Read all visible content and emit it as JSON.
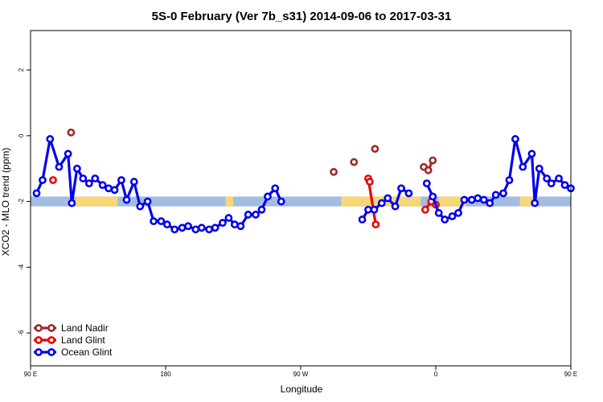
{
  "chart_data": {
    "type": "line",
    "title": "5S-0 February (Ver 7b_s31)   2014-09-06 to 2017-03-31",
    "xlabel": "Longitude",
    "ylabel": "XCO2 - MLO trend (ppm)",
    "xlim": [
      90,
      450
    ],
    "ylim": [
      -7,
      3.2
    ],
    "x_ticks": [
      {
        "value": 90,
        "label": "90 E"
      },
      {
        "value": 180,
        "label": "180"
      },
      {
        "value": 270,
        "label": "90 W"
      },
      {
        "value": 360,
        "label": "0"
      },
      {
        "value": 450,
        "label": "90 E"
      },
      {
        "value": 540,
        "label": "180"
      }
    ],
    "y_ticks": [
      {
        "value": 2,
        "label": "2"
      },
      {
        "value": 0,
        "label": "0"
      },
      {
        "value": -2,
        "label": "-2"
      },
      {
        "value": -4,
        "label": "-4"
      },
      {
        "value": -6,
        "label": "-6"
      }
    ],
    "band": {
      "ymin": -2.15,
      "ymax": -1.85,
      "ocean_color": "#a3bde0",
      "land_color": "#f5d77a"
    },
    "land_segments": [
      [
        120,
        148
      ],
      [
        220,
        225
      ],
      [
        297,
        350
      ],
      [
        362,
        380
      ],
      [
        416,
        425
      ],
      [
        510,
        520
      ],
      [
        528,
        538
      ]
    ],
    "legend_position": "bottom-left",
    "series": [
      {
        "name": "Land Nadir",
        "color": "#9e2a2b",
        "style": "line+points",
        "segments": [
          [
            [
              319.5,
              -0.4
            ]
          ],
          [
            [
              305.5,
              -0.8
            ]
          ],
          [
            [
              292,
              -1.1
            ]
          ],
          [
            [
              117,
              0.1
            ]
          ],
          [
            [
              352,
              -0.95
            ],
            [
              355,
              -1.05
            ],
            [
              358,
              -0.75
            ]
          ],
          [
            [
              477,
              0.1
            ]
          ]
        ]
      },
      {
        "name": "Land Glint",
        "color": "#ee0000",
        "style": "line+points",
        "segments": [
          [
            [
              105,
              -1.35
            ]
          ],
          [
            [
              315,
              -1.3
            ],
            [
              320,
              -2.7
            ]
          ],
          [
            [
              316,
              -1.4
            ]
          ],
          [
            [
              353,
              -2.25
            ],
            [
              357,
              -2.0
            ]
          ],
          [
            [
              360,
              -2.1
            ]
          ],
          [
            [
              465,
              -1.35
            ]
          ]
        ]
      },
      {
        "name": "Ocean Glint",
        "color": "#0000ee",
        "style": "line+points",
        "segments": [
          [
            [
              94,
              -1.75
            ],
            [
              98,
              -1.35
            ],
            [
              103,
              -0.1
            ],
            [
              109,
              -0.95
            ],
            [
              115,
              -0.55
            ],
            [
              117.5,
              -2.05
            ],
            [
              121,
              -1.0
            ],
            [
              125,
              -1.3
            ],
            [
              129,
              -1.45
            ],
            [
              133,
              -1.3
            ],
            [
              138,
              -1.5
            ],
            [
              142,
              -1.6
            ],
            [
              146,
              -1.65
            ],
            [
              150.5,
              -1.35
            ],
            [
              154,
              -1.95
            ],
            [
              159,
              -1.4
            ],
            [
              163,
              -2.15
            ],
            [
              168,
              -2.0
            ],
            [
              172,
              -2.6
            ],
            [
              177,
              -2.6
            ],
            [
              181,
              -2.7
            ],
            [
              186,
              -2.85
            ],
            [
              191,
              -2.8
            ],
            [
              195,
              -2.75
            ],
            [
              200,
              -2.85
            ],
            [
              204,
              -2.8
            ],
            [
              209,
              -2.85
            ],
            [
              213,
              -2.8
            ],
            [
              218,
              -2.65
            ],
            [
              222,
              -2.5
            ],
            [
              226,
              -2.7
            ],
            [
              230,
              -2.75
            ],
            [
              235,
              -2.4
            ],
            [
              240,
              -2.4
            ],
            [
              244,
              -2.25
            ],
            [
              248,
              -1.85
            ],
            [
              253,
              -1.6
            ],
            [
              257,
              -2.0
            ]
          ],
          [
            [
              311,
              -2.55
            ],
            [
              315,
              -2.25
            ],
            [
              319,
              -2.25
            ],
            [
              324,
              -2.05
            ],
            [
              328,
              -1.9
            ],
            [
              333,
              -2.15
            ],
            [
              337,
              -1.6
            ],
            [
              342,
              -1.75
            ]
          ],
          [
            [
              354,
              -1.45
            ],
            [
              358,
              -1.85
            ],
            [
              362,
              -2.35
            ],
            [
              366,
              -2.55
            ],
            [
              371,
              -2.45
            ],
            [
              375,
              -2.35
            ],
            [
              379,
              -1.95
            ],
            [
              384,
              -1.95
            ],
            [
              388,
              -1.9
            ],
            [
              392,
              -1.95
            ],
            [
              396,
              -2.05
            ],
            [
              400,
              -1.8
            ],
            [
              405,
              -1.75
            ],
            [
              409,
              -1.35
            ],
            [
              413,
              -0.1
            ],
            [
              418,
              -0.95
            ],
            [
              424,
              -0.55
            ],
            [
              426,
              -2.05
            ],
            [
              429,
              -1.0
            ],
            [
              434,
              -1.3
            ],
            [
              437,
              -1.45
            ],
            [
              442,
              -1.3
            ],
            [
              446,
              -1.5
            ],
            [
              450,
              -1.6
            ],
            [
              453,
              -1.65
            ],
            [
              458,
              -1.35
            ],
            [
              462,
              -1.95
            ],
            [
              467,
              -1.4
            ],
            [
              471,
              -2.15
            ],
            [
              475,
              -2.0
            ]
          ]
        ]
      }
    ]
  }
}
